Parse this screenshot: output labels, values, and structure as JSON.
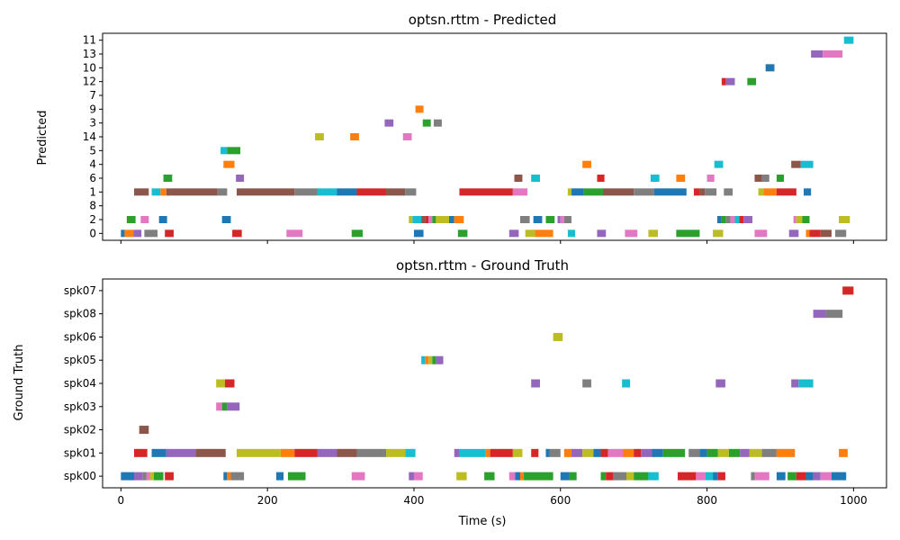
{
  "palette": [
    "#1f77b4",
    "#ff7f0e",
    "#2ca02c",
    "#d62728",
    "#9467bd",
    "#8c564b",
    "#e377c2",
    "#7f7f7f",
    "#bcbd22",
    "#17becf"
  ],
  "chart_data": [
    {
      "type": "timeline",
      "title": "optsn.rttm - Predicted",
      "ylabel": "Predicted",
      "xlim": [
        -25,
        1045
      ],
      "xticks": [
        0,
        200,
        400,
        600,
        800,
        1000
      ],
      "show_xtick_labels": false,
      "categories": [
        "0",
        "2",
        "8",
        "1",
        "6",
        "4",
        "5",
        "14",
        "3",
        "9",
        "7",
        "12",
        "10",
        "13",
        "11"
      ],
      "segments": [
        [
          "0",
          0,
          5,
          0
        ],
        [
          "0",
          5,
          17,
          1
        ],
        [
          "0",
          17,
          28,
          4
        ],
        [
          "0",
          32,
          50,
          7
        ],
        [
          "0",
          60,
          72,
          3
        ],
        [
          "0",
          152,
          165,
          3
        ],
        [
          "0",
          226,
          248,
          6
        ],
        [
          "0",
          315,
          330,
          2
        ],
        [
          "0",
          400,
          413,
          0
        ],
        [
          "0",
          460,
          473,
          2
        ],
        [
          "0",
          530,
          543,
          4
        ],
        [
          "0",
          552,
          565,
          8
        ],
        [
          "0",
          565,
          590,
          1
        ],
        [
          "0",
          610,
          620,
          9
        ],
        [
          "0",
          650,
          662,
          4
        ],
        [
          "0",
          688,
          705,
          6
        ],
        [
          "0",
          720,
          733,
          8
        ],
        [
          "0",
          758,
          790,
          2
        ],
        [
          "0",
          808,
          822,
          8
        ],
        [
          "0",
          865,
          882,
          6
        ],
        [
          "0",
          912,
          925,
          4
        ],
        [
          "0",
          935,
          940,
          1
        ],
        [
          "0",
          940,
          955,
          3
        ],
        [
          "0",
          955,
          970,
          5
        ],
        [
          "0",
          975,
          990,
          7
        ],
        [
          "2",
          8,
          20,
          2
        ],
        [
          "2",
          27,
          38,
          6
        ],
        [
          "2",
          52,
          63,
          0
        ],
        [
          "2",
          138,
          150,
          0
        ],
        [
          "2",
          393,
          398,
          8
        ],
        [
          "2",
          398,
          410,
          9
        ],
        [
          "2",
          410,
          415,
          5
        ],
        [
          "2",
          415,
          420,
          3
        ],
        [
          "2",
          420,
          425,
          6
        ],
        [
          "2",
          425,
          430,
          2
        ],
        [
          "2",
          430,
          448,
          8
        ],
        [
          "2",
          448,
          455,
          0
        ],
        [
          "2",
          455,
          468,
          1
        ],
        [
          "2",
          545,
          558,
          7
        ],
        [
          "2",
          563,
          575,
          0
        ],
        [
          "2",
          580,
          592,
          2
        ],
        [
          "2",
          596,
          600,
          4
        ],
        [
          "2",
          600,
          605,
          6
        ],
        [
          "2",
          605,
          615,
          7
        ],
        [
          "2",
          814,
          820,
          0
        ],
        [
          "2",
          820,
          826,
          2
        ],
        [
          "2",
          826,
          832,
          7
        ],
        [
          "2",
          832,
          838,
          6
        ],
        [
          "2",
          838,
          844,
          9
        ],
        [
          "2",
          844,
          850,
          3
        ],
        [
          "2",
          850,
          862,
          4
        ],
        [
          "2",
          918,
          922,
          6
        ],
        [
          "2",
          922,
          930,
          8
        ],
        [
          "2",
          930,
          940,
          2
        ],
        [
          "2",
          980,
          995,
          8
        ],
        [
          "1",
          18,
          38,
          5
        ],
        [
          "1",
          42,
          54,
          9
        ],
        [
          "1",
          54,
          62,
          1
        ],
        [
          "1",
          62,
          132,
          5
        ],
        [
          "1",
          132,
          145,
          7
        ],
        [
          "1",
          158,
          237,
          5
        ],
        [
          "1",
          237,
          268,
          7
        ],
        [
          "1",
          268,
          295,
          9
        ],
        [
          "1",
          295,
          322,
          0
        ],
        [
          "1",
          322,
          362,
          3
        ],
        [
          "1",
          362,
          388,
          5
        ],
        [
          "1",
          388,
          403,
          7
        ],
        [
          "1",
          462,
          535,
          3
        ],
        [
          "1",
          535,
          555,
          6
        ],
        [
          "1",
          610,
          615,
          8
        ],
        [
          "1",
          615,
          632,
          0
        ],
        [
          "1",
          632,
          658,
          2
        ],
        [
          "1",
          658,
          700,
          5
        ],
        [
          "1",
          700,
          728,
          7
        ],
        [
          "1",
          728,
          772,
          0
        ],
        [
          "1",
          782,
          790,
          3
        ],
        [
          "1",
          790,
          797,
          5
        ],
        [
          "1",
          797,
          813,
          7
        ],
        [
          "1",
          823,
          835,
          7
        ],
        [
          "1",
          870,
          877,
          8
        ],
        [
          "1",
          877,
          895,
          1
        ],
        [
          "1",
          895,
          922,
          3
        ],
        [
          "1",
          932,
          942,
          0
        ],
        [
          "6",
          58,
          70,
          2
        ],
        [
          "6",
          157,
          168,
          4
        ],
        [
          "6",
          537,
          548,
          5
        ],
        [
          "6",
          560,
          572,
          9
        ],
        [
          "6",
          650,
          660,
          3
        ],
        [
          "6",
          723,
          735,
          9
        ],
        [
          "6",
          758,
          770,
          1
        ],
        [
          "6",
          800,
          810,
          6
        ],
        [
          "6",
          865,
          875,
          5
        ],
        [
          "6",
          875,
          885,
          7
        ],
        [
          "6",
          895,
          905,
          2
        ],
        [
          "4",
          140,
          155,
          1
        ],
        [
          "4",
          630,
          642,
          1
        ],
        [
          "4",
          810,
          822,
          9
        ],
        [
          "4",
          915,
          928,
          5
        ],
        [
          "4",
          928,
          945,
          9
        ],
        [
          "5",
          136,
          145,
          9
        ],
        [
          "5",
          145,
          163,
          2
        ],
        [
          "14",
          265,
          277,
          8
        ],
        [
          "14",
          313,
          325,
          1
        ],
        [
          "14",
          385,
          397,
          6
        ],
        [
          "3",
          360,
          372,
          4
        ],
        [
          "3",
          412,
          423,
          2
        ],
        [
          "3",
          427,
          438,
          7
        ],
        [
          "9",
          402,
          413,
          1
        ],
        [
          "12",
          820,
          826,
          3
        ],
        [
          "12",
          826,
          838,
          4
        ],
        [
          "12",
          855,
          867,
          2
        ],
        [
          "10",
          880,
          892,
          0
        ],
        [
          "13",
          942,
          958,
          4
        ],
        [
          "13",
          958,
          985,
          6
        ],
        [
          "11",
          987,
          1000,
          9
        ]
      ]
    },
    {
      "type": "timeline",
      "title": "optsn.rttm - Ground Truth",
      "ylabel": "Ground Truth",
      "xlabel": "Time (s)",
      "xlim": [
        -25,
        1045
      ],
      "xticks": [
        0,
        200,
        400,
        600,
        800,
        1000
      ],
      "show_xtick_labels": true,
      "categories": [
        "spk00",
        "spk01",
        "spk02",
        "spk03",
        "spk04",
        "spk05",
        "spk06",
        "spk08",
        "spk07"
      ],
      "segments": [
        [
          "spk00",
          0,
          18,
          0
        ],
        [
          "spk00",
          18,
          30,
          4
        ],
        [
          "spk00",
          30,
          35,
          7
        ],
        [
          "spk00",
          35,
          40,
          6
        ],
        [
          "spk00",
          40,
          45,
          8
        ],
        [
          "spk00",
          45,
          58,
          2
        ],
        [
          "spk00",
          60,
          72,
          3
        ],
        [
          "spk00",
          140,
          145,
          0
        ],
        [
          "spk00",
          145,
          150,
          1
        ],
        [
          "spk00",
          150,
          168,
          7
        ],
        [
          "spk00",
          212,
          222,
          0
        ],
        [
          "spk00",
          228,
          252,
          2
        ],
        [
          "spk00",
          315,
          333,
          6
        ],
        [
          "spk00",
          393,
          400,
          4
        ],
        [
          "spk00",
          400,
          412,
          6
        ],
        [
          "spk00",
          458,
          472,
          8
        ],
        [
          "spk00",
          496,
          510,
          2
        ],
        [
          "spk00",
          530,
          538,
          6
        ],
        [
          "spk00",
          538,
          545,
          0
        ],
        [
          "spk00",
          545,
          550,
          1
        ],
        [
          "spk00",
          550,
          590,
          2
        ],
        [
          "spk00",
          600,
          612,
          0
        ],
        [
          "spk00",
          612,
          622,
          2
        ],
        [
          "spk00",
          655,
          662,
          2
        ],
        [
          "spk00",
          662,
          672,
          3
        ],
        [
          "spk00",
          672,
          690,
          7
        ],
        [
          "spk00",
          690,
          700,
          8
        ],
        [
          "spk00",
          700,
          720,
          2
        ],
        [
          "spk00",
          720,
          734,
          9
        ],
        [
          "spk00",
          760,
          785,
          3
        ],
        [
          "spk00",
          785,
          798,
          6
        ],
        [
          "spk00",
          798,
          808,
          9
        ],
        [
          "spk00",
          808,
          815,
          0
        ],
        [
          "spk00",
          815,
          825,
          3
        ],
        [
          "spk00",
          860,
          865,
          7
        ],
        [
          "spk00",
          865,
          885,
          6
        ],
        [
          "spk00",
          895,
          907,
          0
        ],
        [
          "spk00",
          910,
          922,
          2
        ],
        [
          "spk00",
          922,
          935,
          3
        ],
        [
          "spk00",
          935,
          945,
          0
        ],
        [
          "spk00",
          945,
          955,
          4
        ],
        [
          "spk00",
          955,
          970,
          6
        ],
        [
          "spk00",
          970,
          990,
          0
        ],
        [
          "spk01",
          18,
          36,
          3
        ],
        [
          "spk01",
          42,
          62,
          0
        ],
        [
          "spk01",
          62,
          102,
          4
        ],
        [
          "spk01",
          102,
          143,
          5
        ],
        [
          "spk01",
          158,
          218,
          8
        ],
        [
          "spk01",
          218,
          237,
          1
        ],
        [
          "spk01",
          237,
          268,
          3
        ],
        [
          "spk01",
          268,
          295,
          4
        ],
        [
          "spk01",
          295,
          322,
          5
        ],
        [
          "spk01",
          322,
          362,
          7
        ],
        [
          "spk01",
          362,
          388,
          8
        ],
        [
          "spk01",
          388,
          402,
          9
        ],
        [
          "spk01",
          455,
          462,
          4
        ],
        [
          "spk01",
          462,
          498,
          9
        ],
        [
          "spk01",
          498,
          504,
          1
        ],
        [
          "spk01",
          504,
          535,
          3
        ],
        [
          "spk01",
          535,
          548,
          8
        ],
        [
          "spk01",
          560,
          570,
          3
        ],
        [
          "spk01",
          580,
          585,
          0
        ],
        [
          "spk01",
          585,
          600,
          7
        ],
        [
          "spk01",
          605,
          615,
          1
        ],
        [
          "spk01",
          615,
          630,
          4
        ],
        [
          "spk01",
          630,
          645,
          8
        ],
        [
          "spk01",
          645,
          655,
          0
        ],
        [
          "spk01",
          655,
          665,
          3
        ],
        [
          "spk01",
          665,
          685,
          6
        ],
        [
          "spk01",
          685,
          700,
          1
        ],
        [
          "spk01",
          700,
          710,
          3
        ],
        [
          "spk01",
          710,
          725,
          4
        ],
        [
          "spk01",
          725,
          740,
          0
        ],
        [
          "spk01",
          740,
          770,
          2
        ],
        [
          "spk01",
          775,
          790,
          7
        ],
        [
          "spk01",
          790,
          800,
          0
        ],
        [
          "spk01",
          800,
          815,
          2
        ],
        [
          "spk01",
          815,
          830,
          8
        ],
        [
          "spk01",
          830,
          845,
          2
        ],
        [
          "spk01",
          845,
          858,
          4
        ],
        [
          "spk01",
          858,
          875,
          8
        ],
        [
          "spk01",
          875,
          895,
          7
        ],
        [
          "spk01",
          895,
          920,
          1
        ],
        [
          "spk01",
          980,
          992,
          1
        ],
        [
          "spk02",
          25,
          38,
          5
        ],
        [
          "spk03",
          130,
          138,
          6
        ],
        [
          "spk03",
          138,
          145,
          2
        ],
        [
          "spk03",
          145,
          162,
          4
        ],
        [
          "spk04",
          130,
          142,
          8
        ],
        [
          "spk04",
          142,
          155,
          3
        ],
        [
          "spk04",
          560,
          572,
          4
        ],
        [
          "spk04",
          630,
          642,
          7
        ],
        [
          "spk04",
          684,
          695,
          9
        ],
        [
          "spk04",
          812,
          825,
          4
        ],
        [
          "spk04",
          915,
          925,
          4
        ],
        [
          "spk04",
          925,
          945,
          9
        ],
        [
          "spk05",
          410,
          415,
          9
        ],
        [
          "spk05",
          415,
          420,
          1
        ],
        [
          "spk05",
          420,
          425,
          8
        ],
        [
          "spk05",
          425,
          430,
          2
        ],
        [
          "spk05",
          430,
          440,
          4
        ],
        [
          "spk06",
          590,
          603,
          8
        ],
        [
          "spk08",
          945,
          962,
          4
        ],
        [
          "spk08",
          962,
          985,
          7
        ],
        [
          "spk07",
          985,
          1000,
          3
        ]
      ]
    }
  ]
}
